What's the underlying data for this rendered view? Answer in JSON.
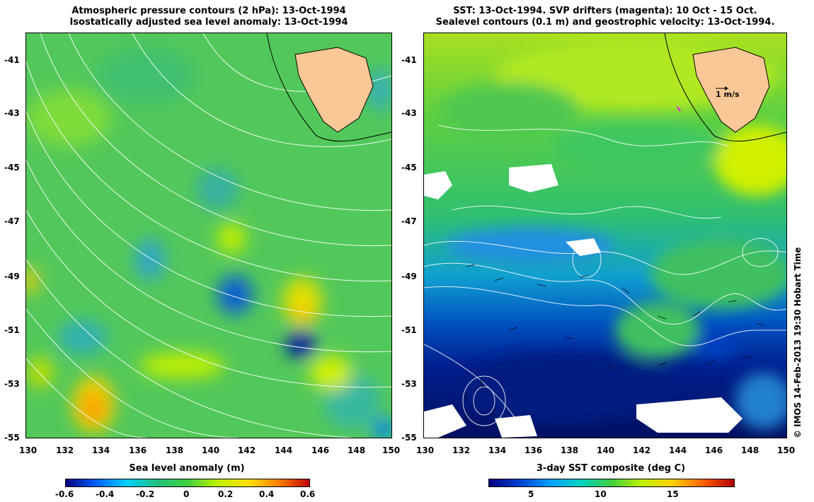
{
  "left_panel": {
    "title_line1": "Atmospheric pressure contours (2 hPa): 13-Oct-1994",
    "title_line2": "Isostatically adjusted sea level anomaly: 13-Oct-1994",
    "y_ticks": [
      "-41",
      "-43",
      "-45",
      "-47",
      "-49",
      "-51",
      "-53",
      "-55"
    ],
    "x_ticks": [
      "130",
      "132",
      "134",
      "136",
      "138",
      "140",
      "142",
      "144",
      "146",
      "148",
      "150"
    ],
    "colorbar_title": "Sea level anomaly (m)",
    "colorbar_ticks": [
      "-0.6",
      "-0.4",
      "-0.2",
      "0",
      "0.2",
      "0.4",
      "0.6"
    ]
  },
  "right_panel": {
    "title_line1": "SST: 13-Oct-1994. SVP drifters (magenta): 10 Oct - 15 Oct.",
    "title_line2": "Sealevel contours (0.1 m) and geostrophic velocity: 13-Oct-1994.",
    "y_ticks": [
      "-41",
      "-43",
      "-45",
      "-47",
      "-49",
      "-51",
      "-53",
      "-55"
    ],
    "x_ticks": [
      "130",
      "132",
      "134",
      "136",
      "138",
      "140",
      "142",
      "144",
      "146",
      "148",
      "150"
    ],
    "scale_arrow_label": "1 m/s",
    "colorbar_title": "3-day SST composite (deg C)",
    "colorbar_ticks": [
      "5",
      "10",
      "15"
    ]
  },
  "credit": "© IMOS 14-Feb-2013 19:30 Hobart Time",
  "colors": {
    "land": "#f9c896",
    "ssa_colormap": [
      "#00007f",
      "#0060ff",
      "#00d0ff",
      "#20c080",
      "#40d040",
      "#c0f000",
      "#ffe000",
      "#ff8000",
      "#c00000"
    ],
    "sst_colormap": [
      "#00007f",
      "#0040d0",
      "#00a0ff",
      "#00d0c0",
      "#40d040",
      "#c0f000",
      "#ffd000",
      "#ff6000",
      "#b00000"
    ]
  }
}
